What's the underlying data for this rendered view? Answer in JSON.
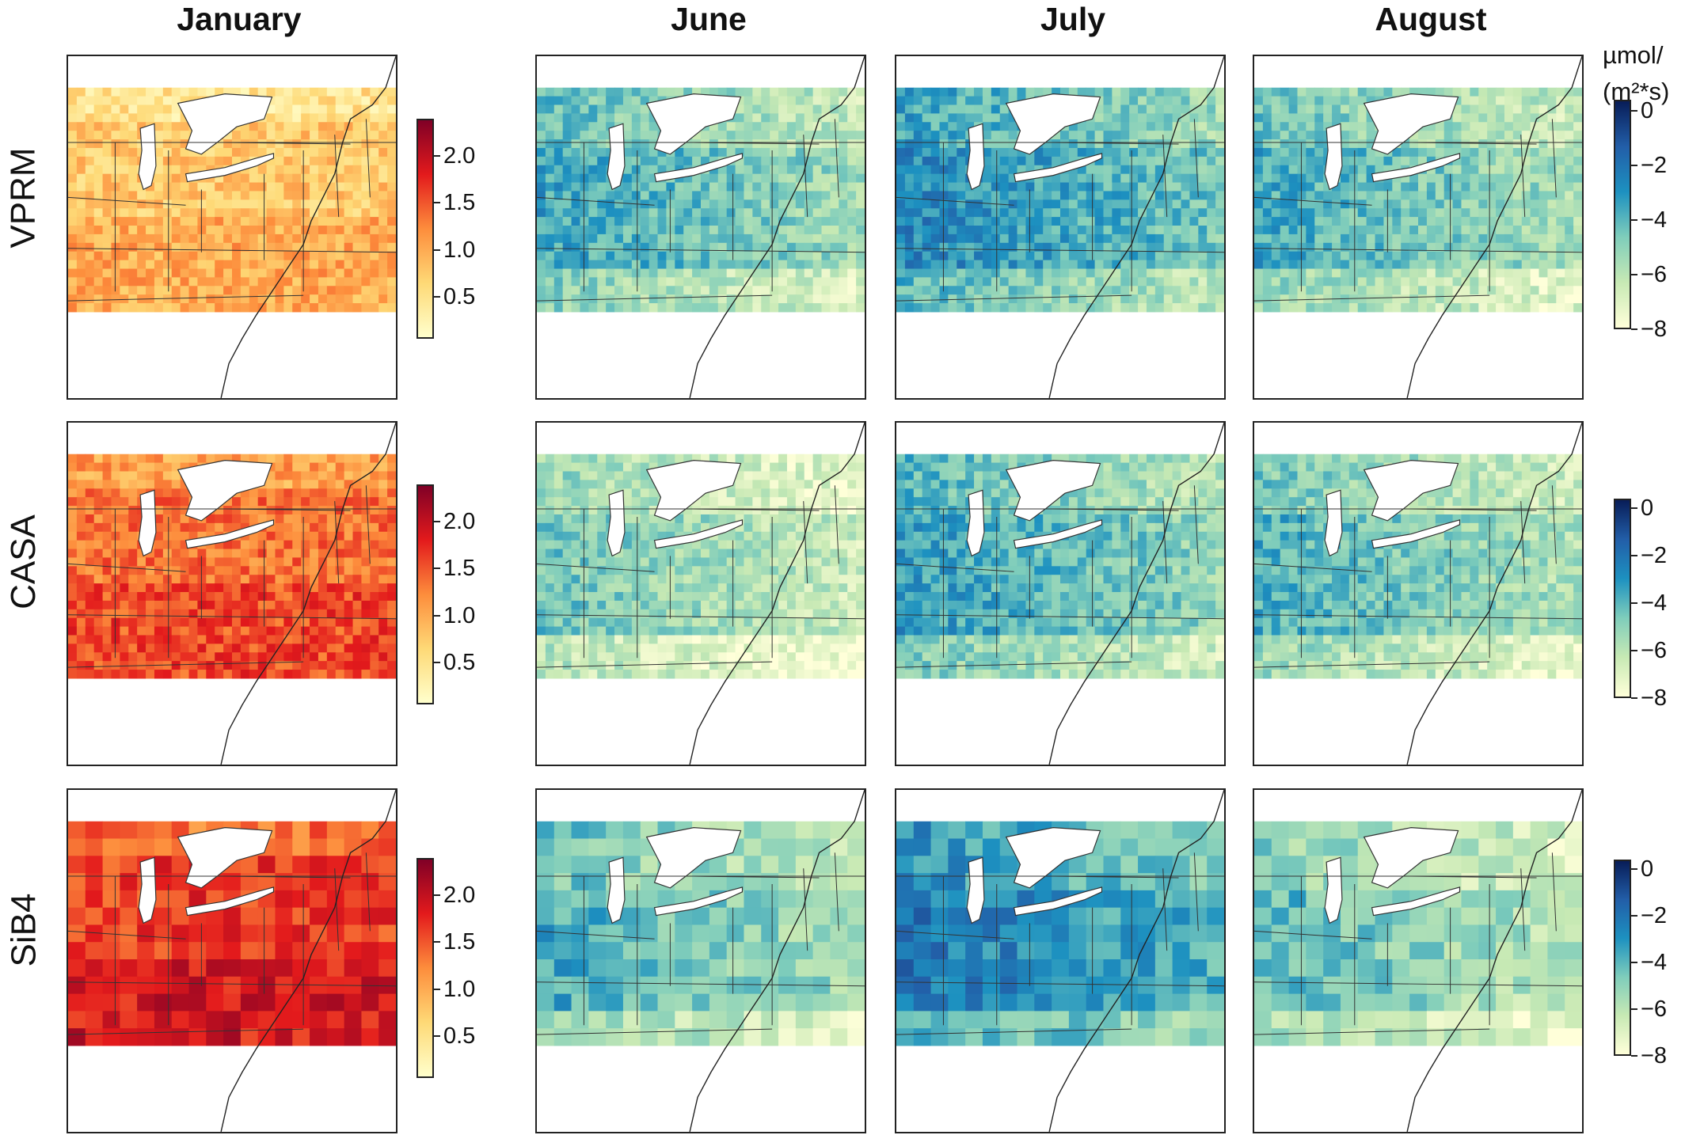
{
  "columns": [
    "January",
    "June",
    "July",
    "August"
  ],
  "rows": [
    "VPRM",
    "CASA",
    "SiB4"
  ],
  "units": {
    "line1": "µmol/",
    "line2": "(m²*s)"
  },
  "colorbars": {
    "january": {
      "palette": "YlOrRd",
      "colors": [
        "#ffffcc",
        "#fed976",
        "#fd8d3c",
        "#e31a1c",
        "#800026"
      ],
      "ticks": [
        "2.0",
        "1.5",
        "1.0",
        "0.5"
      ],
      "tick_values": [
        2.0,
        1.5,
        1.0,
        0.5
      ],
      "range": [
        0.05,
        2.4
      ]
    },
    "summer": {
      "palette": "YlGnBu",
      "colors": [
        "#ffffd9",
        "#c7e9b4",
        "#7fcdbb",
        "#1d91c0",
        "#225ea8",
        "#081d58"
      ],
      "ticks": [
        "0",
        "−2",
        "−4",
        "−6",
        "−8"
      ],
      "tick_values": [
        0,
        -2,
        -4,
        -6,
        -8
      ],
      "range": [
        -8,
        0.4
      ]
    }
  },
  "panels": [
    {
      "row": "VPRM",
      "month": "January",
      "scale": "january",
      "level": 0.3
    },
    {
      "row": "VPRM",
      "month": "June",
      "scale": "summer",
      "level": 0.42
    },
    {
      "row": "VPRM",
      "month": "July",
      "scale": "summer",
      "level": 0.52
    },
    {
      "row": "VPRM",
      "month": "August",
      "scale": "summer",
      "level": 0.4
    },
    {
      "row": "CASA",
      "month": "January",
      "scale": "january",
      "level": 0.55
    },
    {
      "row": "CASA",
      "month": "June",
      "scale": "summer",
      "level": 0.3
    },
    {
      "row": "CASA",
      "month": "July",
      "scale": "summer",
      "level": 0.45
    },
    {
      "row": "CASA",
      "month": "August",
      "scale": "summer",
      "level": 0.38
    },
    {
      "row": "SiB4",
      "month": "January",
      "scale": "january",
      "level": 0.68
    },
    {
      "row": "SiB4",
      "month": "June",
      "scale": "summer",
      "level": 0.4
    },
    {
      "row": "SiB4",
      "month": "July",
      "scale": "summer",
      "level": 0.58
    },
    {
      "row": "SiB4",
      "month": "August",
      "scale": "summer",
      "level": 0.34
    }
  ]
}
